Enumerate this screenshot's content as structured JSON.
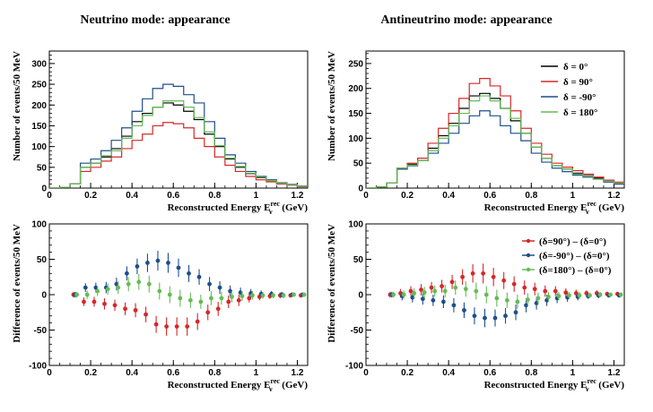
{
  "colors": {
    "black": "#000000",
    "red": "#d62828",
    "blue": "#1f4e8c",
    "green": "#66bb55"
  },
  "charts": [
    {
      "type": "step-line",
      "title": "Neutrino mode: appearance",
      "xlabel": "Reconstructed Energy E",
      "xlabel_sub": "ν",
      "xlabel_sup": "rec",
      "xlabel_unit": "(GeV)",
      "ylabel": "Number of events/50 MeV",
      "xlim": [
        0,
        1.25
      ],
      "ylim": [
        0,
        330
      ],
      "xticks": [
        0,
        0.2,
        0.4,
        0.6,
        0.8,
        1,
        1.2
      ],
      "xtick_labels": [
        "0",
        "0.2",
        "0.4",
        "0.6",
        "0.8",
        "1",
        "1.2"
      ],
      "yticks": [
        0,
        50,
        100,
        150,
        200,
        250,
        300
      ],
      "ytick_labels": [
        "0",
        "50",
        "100",
        "150",
        "200",
        "250",
        "300"
      ],
      "bin_edges": [
        0,
        0.05,
        0.1,
        0.15,
        0.2,
        0.25,
        0.3,
        0.35,
        0.4,
        0.45,
        0.5,
        0.55,
        0.6,
        0.65,
        0.7,
        0.75,
        0.8,
        0.85,
        0.9,
        0.95,
        1.0,
        1.05,
        1.1,
        1.15,
        1.2,
        1.25
      ],
      "series": [
        {
          "name": "δ = 0°",
          "color": "#000000",
          "values": [
            0,
            2,
            10,
            50,
            60,
            75,
            95,
            125,
            160,
            180,
            195,
            205,
            200,
            185,
            165,
            130,
            100,
            70,
            50,
            35,
            25,
            18,
            12,
            8,
            4
          ]
        },
        {
          "name": "δ = 90°",
          "color": "#d62828",
          "values": [
            0,
            2,
            10,
            40,
            50,
            65,
            75,
            95,
            115,
            130,
            150,
            158,
            155,
            145,
            120,
            100,
            75,
            55,
            40,
            28,
            20,
            15,
            10,
            7,
            3
          ]
        },
        {
          "name": "δ = -90°",
          "color": "#1f4e8c",
          "values": [
            0,
            2,
            10,
            60,
            70,
            90,
            115,
            145,
            185,
            215,
            240,
            250,
            245,
            225,
            205,
            160,
            120,
            80,
            60,
            40,
            28,
            20,
            13,
            9,
            5
          ]
        },
        {
          "name": "δ = 180°",
          "color": "#66bb55",
          "values": [
            0,
            2,
            10,
            50,
            60,
            78,
            90,
            120,
            150,
            175,
            195,
            210,
            210,
            195,
            170,
            135,
            102,
            72,
            52,
            36,
            26,
            18,
            12,
            8,
            4
          ]
        }
      ]
    },
    {
      "type": "step-line",
      "title": "Antineutrino mode: appearance",
      "xlabel": "Reconstructed Energy E",
      "xlabel_sub": "ν",
      "xlabel_sup": "rec",
      "xlabel_unit": "(GeV)",
      "ylabel": "Number of events/50 MeV",
      "xlim": [
        0,
        1.25
      ],
      "ylim": [
        0,
        275
      ],
      "xticks": [
        0,
        0.2,
        0.4,
        0.6,
        0.8,
        1,
        1.2
      ],
      "xtick_labels": [
        "0",
        "0.2",
        "0.4",
        "0.6",
        "0.8",
        "1",
        "1.2"
      ],
      "yticks": [
        0,
        50,
        100,
        150,
        200,
        250
      ],
      "ytick_labels": [
        "0",
        "50",
        "100",
        "150",
        "200",
        "250"
      ],
      "legend": "top-right",
      "bin_edges": [
        0,
        0.05,
        0.1,
        0.15,
        0.2,
        0.25,
        0.3,
        0.35,
        0.4,
        0.45,
        0.5,
        0.55,
        0.6,
        0.65,
        0.7,
        0.75,
        0.8,
        0.85,
        0.9,
        0.95,
        1.0,
        1.05,
        1.1,
        1.15,
        1.2,
        1.25
      ],
      "series": [
        {
          "name": "δ = 0°",
          "color": "#000000",
          "values": [
            0,
            2,
            10,
            40,
            48,
            55,
            80,
            105,
            130,
            160,
            185,
            190,
            180,
            160,
            135,
            110,
            82,
            60,
            45,
            38,
            30,
            25,
            20,
            15,
            10
          ]
        },
        {
          "name": "δ = 90°",
          "color": "#d62828",
          "values": [
            0,
            2,
            10,
            40,
            50,
            60,
            90,
            120,
            150,
            180,
            210,
            220,
            205,
            185,
            155,
            120,
            90,
            68,
            50,
            42,
            35,
            28,
            22,
            16,
            12
          ]
        },
        {
          "name": "δ = -90°",
          "color": "#1f4e8c",
          "values": [
            0,
            2,
            10,
            38,
            45,
            55,
            70,
            90,
            110,
            130,
            145,
            155,
            145,
            125,
            110,
            95,
            70,
            52,
            40,
            33,
            26,
            22,
            18,
            12,
            8
          ]
        },
        {
          "name": "δ = 180°",
          "color": "#66bb55",
          "values": [
            0,
            2,
            10,
            40,
            46,
            55,
            75,
            100,
            125,
            150,
            175,
            185,
            175,
            160,
            140,
            110,
            82,
            60,
            45,
            38,
            28,
            24,
            18,
            14,
            10
          ]
        }
      ]
    },
    {
      "type": "scatter-errorbar",
      "xlabel": "Reconstructed Energy E",
      "xlabel_sub": "ν",
      "xlabel_sup": "rec",
      "xlabel_unit": "(GeV)",
      "ylabel": "Difference of events/50 MeV",
      "xlim": [
        0,
        1.25
      ],
      "ylim": [
        -100,
        100
      ],
      "xticks": [
        0,
        0.2,
        0.4,
        0.6,
        0.8,
        1,
        1.2
      ],
      "xtick_labels": [
        "0",
        "0.2",
        "0.4",
        "0.6",
        "0.8",
        "1",
        "1.2"
      ],
      "yticks": [
        -100,
        -50,
        0,
        50,
        100
      ],
      "ytick_labels": [
        "-100",
        "-50",
        "0",
        "50",
        "100"
      ],
      "x": [
        0.125,
        0.175,
        0.225,
        0.275,
        0.325,
        0.375,
        0.425,
        0.475,
        0.525,
        0.575,
        0.625,
        0.675,
        0.725,
        0.775,
        0.825,
        0.875,
        0.925,
        0.975,
        1.025,
        1.075,
        1.125,
        1.175,
        1.225
      ],
      "series": [
        {
          "name": "red",
          "color": "#d62828",
          "values": [
            0,
            -10,
            -10,
            -13,
            -15,
            -20,
            -22,
            -28,
            -42,
            -45,
            -45,
            -45,
            -38,
            -25,
            -20,
            -10,
            -8,
            -5,
            -3,
            -2,
            -1,
            -1,
            -1
          ],
          "errors": [
            4,
            6,
            7,
            8,
            8,
            9,
            10,
            11,
            12,
            13,
            13,
            13,
            12,
            11,
            10,
            9,
            8,
            6,
            5,
            4,
            4,
            3,
            3
          ]
        },
        {
          "name": "blue",
          "color": "#1f4e8c",
          "values": [
            0,
            10,
            10,
            10,
            15,
            30,
            40,
            45,
            48,
            45,
            38,
            30,
            25,
            15,
            10,
            5,
            3,
            2,
            1,
            1,
            0,
            0,
            0
          ],
          "errors": [
            4,
            6,
            7,
            8,
            9,
            10,
            11,
            13,
            14,
            14,
            13,
            12,
            11,
            10,
            9,
            8,
            7,
            6,
            5,
            4,
            4,
            3,
            3
          ]
        },
        {
          "name": "green",
          "color": "#66bb55",
          "values": [
            0,
            0,
            5,
            8,
            10,
            15,
            18,
            15,
            5,
            0,
            -5,
            -8,
            -10,
            -5,
            -5,
            -3,
            -2,
            -1,
            -1,
            -1,
            -1,
            0,
            0
          ],
          "errors": [
            4,
            6,
            7,
            8,
            9,
            10,
            11,
            12,
            12,
            12,
            12,
            11,
            10,
            10,
            9,
            8,
            7,
            6,
            5,
            4,
            4,
            3,
            3
          ]
        }
      ]
    },
    {
      "type": "scatter-errorbar",
      "xlabel": "Reconstructed Energy E",
      "xlabel_sub": "ν",
      "xlabel_sup": "rec",
      "xlabel_unit": "(GeV)",
      "ylabel": "Difference of events/50 MeV",
      "xlim": [
        0,
        1.25
      ],
      "ylim": [
        -100,
        100
      ],
      "xticks": [
        0,
        0.2,
        0.4,
        0.6,
        0.8,
        1,
        1.2
      ],
      "xtick_labels": [
        "0",
        "0.2",
        "0.4",
        "0.6",
        "0.8",
        "1",
        "1.2"
      ],
      "yticks": [
        -100,
        -50,
        0,
        50,
        100
      ],
      "ytick_labels": [
        "-100",
        "-50",
        "0",
        "50",
        "100"
      ],
      "legend": "top-right",
      "x": [
        0.125,
        0.175,
        0.225,
        0.275,
        0.325,
        0.375,
        0.425,
        0.475,
        0.525,
        0.575,
        0.625,
        0.675,
        0.725,
        0.775,
        0.825,
        0.875,
        0.925,
        0.975,
        1.025,
        1.075,
        1.125,
        1.175,
        1.225
      ],
      "series": [
        {
          "name": "(δ=90°) – (δ=0°)",
          "color": "#d62828",
          "values": [
            0,
            2,
            5,
            7,
            10,
            12,
            18,
            25,
            30,
            30,
            25,
            20,
            15,
            10,
            8,
            5,
            5,
            3,
            2,
            2,
            2,
            1,
            1
          ],
          "errors": [
            4,
            6,
            7,
            8,
            8,
            9,
            10,
            11,
            13,
            14,
            13,
            12,
            11,
            10,
            9,
            8,
            7,
            6,
            5,
            4,
            4,
            3,
            3
          ]
        },
        {
          "name": "(δ=-90°) – (δ=0°)",
          "color": "#1f4e8c",
          "values": [
            0,
            -2,
            -4,
            -6,
            -8,
            -10,
            -15,
            -22,
            -30,
            -33,
            -33,
            -30,
            -25,
            -15,
            -12,
            -8,
            -5,
            -4,
            -3,
            -2,
            -1,
            -1,
            -1
          ],
          "errors": [
            4,
            6,
            7,
            8,
            8,
            9,
            10,
            11,
            12,
            13,
            12,
            11,
            11,
            10,
            9,
            8,
            7,
            6,
            5,
            4,
            4,
            3,
            3
          ]
        },
        {
          "name": "(δ=180°) – (δ=0°)",
          "color": "#66bb55",
          "values": [
            0,
            0,
            2,
            3,
            5,
            5,
            10,
            8,
            5,
            0,
            -5,
            -8,
            -10,
            -7,
            -5,
            -3,
            -2,
            -1,
            -1,
            -1,
            0,
            0,
            0
          ],
          "errors": [
            4,
            6,
            7,
            8,
            8,
            9,
            10,
            11,
            12,
            12,
            12,
            11,
            10,
            9,
            8,
            7,
            6,
            5,
            5,
            4,
            4,
            3,
            3
          ]
        }
      ]
    }
  ]
}
